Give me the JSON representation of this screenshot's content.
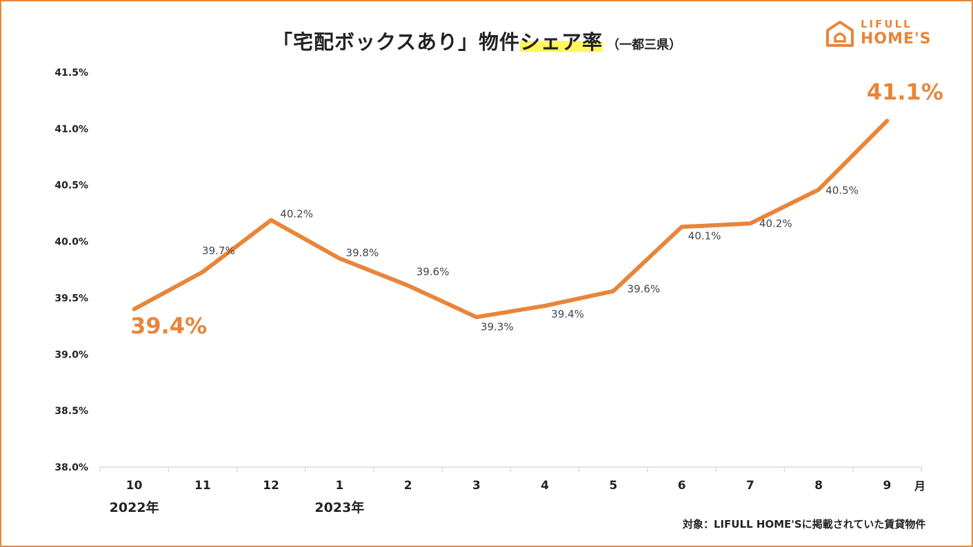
{
  "title": {
    "part1": "「宅配ボックスあり」物件",
    "highlight": "シェア率",
    "sub": "（一都三県）"
  },
  "logo": {
    "line1": "LIFULL",
    "line2": "HOME'S"
  },
  "footer": "対象：LIFULL HOME'Sに掲載されていた賃貸物件",
  "colors": {
    "line": "#E8853A",
    "accent": "#E8853A",
    "text": "#222222",
    "grid": "#D9D9D9",
    "highlight": "#FFF75E"
  },
  "chart_data": {
    "type": "line",
    "title": "「宅配ボックスあり」物件シェア率（一都三県）",
    "categories": [
      "10",
      "11",
      "12",
      "1",
      "2",
      "3",
      "4",
      "5",
      "6",
      "7",
      "8",
      "9"
    ],
    "year_labels": [
      {
        "year": "2022年",
        "category_index": 0
      },
      {
        "year": "2023年",
        "category_index": 3
      }
    ],
    "x_unit": "月",
    "series": [
      {
        "name": "宅配ボックスあり物件シェア率",
        "values": [
          39.4,
          39.73,
          40.19,
          39.85,
          39.61,
          39.33,
          39.43,
          39.56,
          40.13,
          40.16,
          40.46,
          41.07
        ],
        "labels": [
          "39.4%",
          "39.7%",
          "40.2%",
          "39.8%",
          "39.6%",
          "39.3%",
          "39.4%",
          "39.6%",
          "40.1%",
          "40.2%",
          "40.5%",
          "41.1%"
        ],
        "emphasized": [
          0,
          11
        ]
      }
    ],
    "ylim": [
      38.0,
      41.5
    ],
    "yticks": [
      38.0,
      38.5,
      39.0,
      39.5,
      40.0,
      40.5,
      41.0,
      41.5
    ],
    "ytick_labels": [
      "38.0%",
      "38.5%",
      "39.0%",
      "39.5%",
      "40.0%",
      "40.5%",
      "41.0%",
      "41.5%"
    ],
    "xlabel": "",
    "ylabel": "",
    "grid": false
  }
}
